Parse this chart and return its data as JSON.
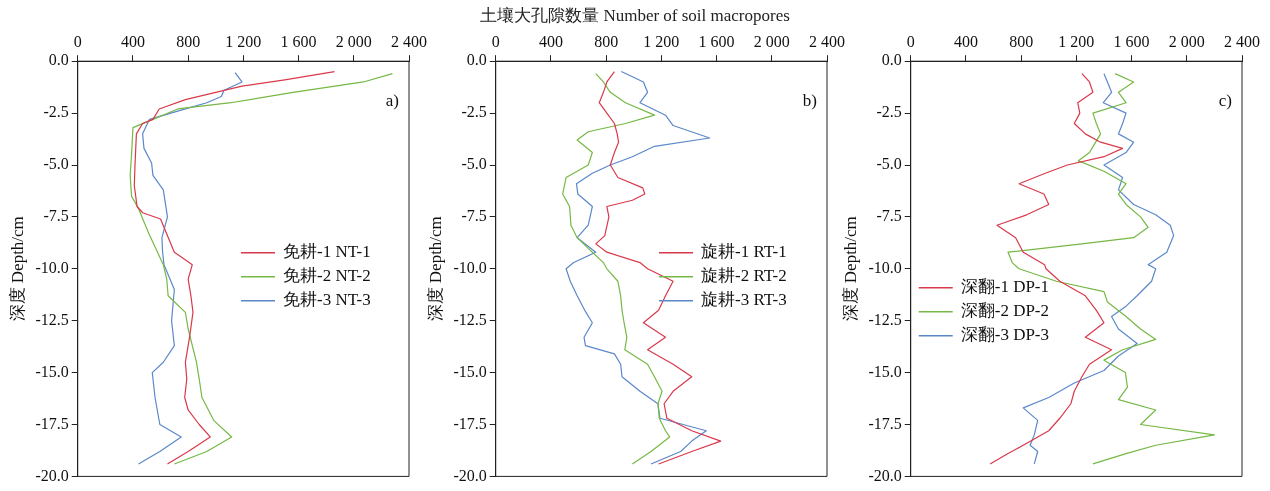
{
  "chart_data": [
    {
      "type": "line",
      "ylabel": "深度 Depth/cm",
      "annotations": [
        "a)"
      ],
      "legend": "right",
      "xlim": [
        0,
        2400
      ],
      "ylim": [
        -20,
        0
      ],
      "xticks": [
        0,
        400,
        800,
        {
          "value": 1200,
          "label": "1 200"
        },
        {
          "value": 1600,
          "label": "1 600"
        },
        {
          "value": 2000,
          "label": "2 000"
        },
        {
          "value": 2400,
          "label": "2 400"
        }
      ],
      "yticks": [
        {
          "value": 0,
          "label": "0.0"
        },
        -2.5,
        {
          "value": -5,
          "label": "-5.0"
        },
        -7.5,
        {
          "value": -10,
          "label": "-10.0"
        },
        -12.5,
        {
          "value": -15,
          "label": "-15.0"
        },
        -17.5,
        {
          "value": -20,
          "label": "-20.0"
        }
      ],
      "series": [
        {
          "name": "免耕-1 NT-1",
          "color": "#d9394a",
          "x": [
            1860,
            1500,
            1190,
            780,
            590,
            545,
            470,
            425,
            415,
            410,
            420,
            430,
            470,
            600,
            700,
            830,
            800,
            820,
            835,
            810,
            780,
            790,
            775,
            800,
            880,
            960,
            800,
            650
          ],
          "values": [
            -0.5,
            -0.9,
            -1.2,
            -1.85,
            -2.3,
            -2.8,
            -3.0,
            -3.5,
            -5,
            -6,
            -6.5,
            -7,
            -7.3,
            -7.6,
            -9.2,
            -9.8,
            -10.5,
            -11.3,
            -12.1,
            -13.3,
            -14.5,
            -15.3,
            -16.2,
            -16.8,
            -17.5,
            -18.1,
            -18.8,
            -19.4
          ]
        },
        {
          "name": "免耕-2 NT-2",
          "color": "#76b845",
          "x": [
            2280,
            2070,
            1560,
            1110,
            725,
            545,
            400,
            390,
            380,
            390,
            440,
            515,
            620,
            645,
            655,
            780,
            800,
            860,
            880,
            900,
            985,
            1115,
            935,
            700
          ],
          "values": [
            -0.6,
            -1.0,
            -1.5,
            -2.0,
            -2.3,
            -2.8,
            -3.2,
            -4.5,
            -5.5,
            -6.5,
            -7.1,
            -8.3,
            -9.8,
            -10.5,
            -11.3,
            -12.1,
            -12.9,
            -14.5,
            -15.3,
            -16.2,
            -17.3,
            -18.1,
            -18.8,
            -19.4
          ]
        },
        {
          "name": "免耕-3 NT-3",
          "color": "#5b88c9",
          "x": [
            1140,
            1190,
            1060,
            1040,
            935,
            780,
            520,
            470,
            480,
            535,
            545,
            620,
            650,
            610,
            615,
            625,
            700,
            680,
            700,
            620,
            540,
            550,
            560,
            595,
            750,
            595,
            440
          ],
          "values": [
            -0.55,
            -1.0,
            -1.4,
            -1.7,
            -2.0,
            -2.3,
            -2.8,
            -3.5,
            -4.2,
            -4.9,
            -5.5,
            -6.2,
            -7.5,
            -8.5,
            -9.2,
            -9.8,
            -11.0,
            -12.5,
            -13.7,
            -14.5,
            -15.0,
            -15.6,
            -16.2,
            -17.5,
            -18.1,
            -18.8,
            -19.4
          ]
        }
      ]
    },
    {
      "type": "line",
      "xlabel": "土壤大孔隙数量 Number of soil macropores",
      "ylabel": "深度 Depth/cm",
      "annotations": [
        "b)"
      ],
      "legend": "right",
      "xlim": [
        0,
        2400
      ],
      "ylim": [
        -20,
        0
      ],
      "xticks": [
        0,
        400,
        800,
        {
          "value": 1200,
          "label": "1 200"
        },
        {
          "value": 1600,
          "label": "1 600"
        },
        {
          "value": 2000,
          "label": "2 000"
        },
        {
          "value": 2400,
          "label": "2 400"
        }
      ],
      "yticks": [
        {
          "value": 0,
          "label": "0.0"
        },
        -2.5,
        {
          "value": -5,
          "label": "-5.0"
        },
        -7.5,
        {
          "value": -10,
          "label": "-10.0"
        },
        -12.5,
        {
          "value": -15,
          "label": "-15.0"
        },
        -17.5,
        {
          "value": -20,
          "label": "-20.0"
        }
      ],
      "series": [
        {
          "name": "旋耕-1 RT-1",
          "color": "#d9394a",
          "x": [
            860,
            805,
            780,
            750,
            805,
            860,
            880,
            890,
            860,
            830,
            885,
            1065,
            1080,
            990,
            805,
            820,
            790,
            725,
            805,
            1045,
            1100,
            1285,
            1230,
            1180,
            1070,
            1230,
            1100,
            1285,
            1420,
            1285,
            1220,
            1240,
            1420,
            1630,
            1420,
            1180
          ],
          "values": [
            -0.5,
            -1.0,
            -1.5,
            -2.0,
            -2.5,
            -3.0,
            -3.5,
            -3.9,
            -4.4,
            -5.0,
            -5.6,
            -6.1,
            -6.4,
            -6.7,
            -7.0,
            -7.5,
            -8.4,
            -8.8,
            -9.2,
            -9.7,
            -10.0,
            -10.6,
            -11.3,
            -12.0,
            -12.6,
            -13.3,
            -13.9,
            -14.6,
            -15.2,
            -15.9,
            -16.5,
            -17.2,
            -17.8,
            -18.3,
            -18.8,
            -19.4
          ]
        },
        {
          "name": "旋耕-2 RT-2",
          "color": "#76b845",
          "x": [
            725,
            780,
            830,
            940,
            1150,
            940,
            670,
            590,
            700,
            670,
            510,
            485,
            535,
            545,
            590,
            700,
            780,
            805,
            885,
            905,
            915,
            930,
            950,
            935,
            1100,
            1150,
            1205,
            1175,
            1185,
            1230,
            1260,
            1125,
            990
          ],
          "values": [
            -0.6,
            -1.0,
            -1.5,
            -2.0,
            -2.6,
            -3.0,
            -3.4,
            -3.8,
            -4.4,
            -5.0,
            -5.6,
            -6.4,
            -7.0,
            -7.9,
            -8.5,
            -9.2,
            -9.7,
            -10.0,
            -10.6,
            -11.3,
            -12.0,
            -12.6,
            -13.3,
            -13.9,
            -14.6,
            -15.2,
            -15.9,
            -16.5,
            -17.2,
            -17.8,
            -18.1,
            -18.8,
            -19.4
          ]
        },
        {
          "name": "旋耕-3 RT-3",
          "color": "#5b88c9",
          "x": [
            910,
            1070,
            1100,
            1045,
            1230,
            1285,
            1550,
            1150,
            990,
            830,
            700,
            585,
            595,
            700,
            670,
            590,
            725,
            565,
            510,
            540,
            590,
            645,
            700,
            640,
            650,
            860,
            905,
            915,
            1045,
            1175,
            1190,
            1525,
            1420,
            1340,
            1125
          ],
          "values": [
            -0.5,
            -1.0,
            -1.5,
            -2.0,
            -2.6,
            -3.1,
            -3.7,
            -4.1,
            -4.6,
            -5.0,
            -5.4,
            -5.9,
            -6.4,
            -7.0,
            -7.9,
            -8.5,
            -9.2,
            -9.7,
            -10.0,
            -10.6,
            -11.3,
            -12.0,
            -12.6,
            -13.3,
            -13.7,
            -14.1,
            -14.6,
            -15.2,
            -15.9,
            -16.5,
            -17.2,
            -17.8,
            -18.3,
            -18.8,
            -19.4
          ]
        }
      ]
    },
    {
      "type": "line",
      "ylabel": "深度 Depth/cm",
      "annotations": [
        "c)"
      ],
      "legend": "left",
      "xlim": [
        0,
        2400
      ],
      "ylim": [
        -20,
        0
      ],
      "xticks": [
        0,
        400,
        800,
        {
          "value": 1200,
          "label": "1 200"
        },
        {
          "value": 1600,
          "label": "1 600"
        },
        {
          "value": 2000,
          "label": "2 000"
        },
        {
          "value": 2400,
          "label": "2 400"
        }
      ],
      "yticks": [
        {
          "value": 0,
          "label": "0.0"
        },
        -2.5,
        {
          "value": -5,
          "label": "-5.0"
        },
        -7.5,
        {
          "value": -10,
          "label": "-10.0"
        },
        -12.5,
        {
          "value": -15,
          "label": "-15.0"
        },
        -17.5,
        {
          "value": -20,
          "label": "-20.0"
        }
      ],
      "series": [
        {
          "name": "深翻-1 DP-1",
          "color": "#d9394a",
          "x": [
            1240,
            1295,
            1320,
            1210,
            1225,
            1185,
            1265,
            1375,
            1535,
            1400,
            1135,
            975,
            785,
            965,
            1000,
            840,
            625,
            760,
            815,
            970,
            980,
            1080,
            1265,
            1345,
            1400,
            1265,
            1455,
            1295,
            1240,
            1185,
            1160,
            1080,
            1000,
            815,
            705,
            575
          ],
          "values": [
            -0.6,
            -1.0,
            -1.5,
            -2.0,
            -2.5,
            -3.0,
            -3.5,
            -3.9,
            -4.2,
            -4.6,
            -5.0,
            -5.4,
            -5.9,
            -6.4,
            -6.9,
            -7.4,
            -7.9,
            -8.5,
            -9.2,
            -9.8,
            -10.0,
            -10.6,
            -11.3,
            -12.0,
            -12.6,
            -13.3,
            -13.9,
            -14.6,
            -15.2,
            -15.9,
            -16.5,
            -17.2,
            -17.8,
            -18.5,
            -18.9,
            -19.4
          ]
        },
        {
          "name": "深翻-2 DP-2",
          "color": "#76b845",
          "x": [
            1480,
            1615,
            1505,
            1560,
            1320,
            1345,
            1375,
            1340,
            1295,
            1215,
            1400,
            1560,
            1505,
            1560,
            1665,
            1720,
            1615,
            1240,
            705,
            735,
            785,
            1055,
            1400,
            1425,
            1560,
            1665,
            1775,
            1535,
            1400,
            1555,
            1570,
            1505,
            1775,
            1665,
            2200,
            1775,
            1560,
            1320
          ],
          "values": [
            -0.6,
            -1.0,
            -1.5,
            -2.0,
            -2.5,
            -3.0,
            -3.5,
            -3.9,
            -4.4,
            -4.8,
            -5.3,
            -5.9,
            -6.4,
            -6.9,
            -7.5,
            -8.0,
            -8.5,
            -8.8,
            -9.2,
            -9.7,
            -10.0,
            -10.6,
            -11.1,
            -11.6,
            -12.3,
            -12.9,
            -13.4,
            -13.9,
            -14.4,
            -15.0,
            -15.7,
            -16.3,
            -16.8,
            -17.5,
            -18.0,
            -18.5,
            -18.9,
            -19.4
          ]
        },
        {
          "name": "深翻-3 DP-3",
          "color": "#5b88c9",
          "x": [
            1400,
            1425,
            1455,
            1395,
            1560,
            1535,
            1505,
            1615,
            1560,
            1400,
            1535,
            1505,
            1615,
            1775,
            1880,
            1905,
            1855,
            1720,
            1775,
            1745,
            1640,
            1560,
            1455,
            1505,
            1640,
            1505,
            1400,
            1185,
            1000,
            815,
            920,
            895,
            865,
            920,
            895
          ],
          "values": [
            -0.6,
            -1.0,
            -1.5,
            -2.0,
            -2.5,
            -3.0,
            -3.5,
            -3.9,
            -4.4,
            -5.0,
            -5.6,
            -6.2,
            -6.9,
            -7.4,
            -7.9,
            -8.4,
            -9.2,
            -9.8,
            -10.0,
            -10.6,
            -11.3,
            -11.8,
            -12.3,
            -12.9,
            -13.6,
            -14.2,
            -14.9,
            -15.5,
            -16.2,
            -16.7,
            -17.3,
            -18.0,
            -18.5,
            -18.8,
            -19.4
          ]
        }
      ]
    }
  ]
}
